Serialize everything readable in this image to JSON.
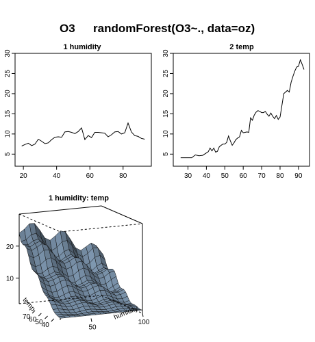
{
  "header": {
    "response": "O3",
    "formula": "randomForest(O3~., data=oz)"
  },
  "chart_data": [
    {
      "type": "line",
      "title": "1  humidity",
      "xlabel": "",
      "ylabel": "",
      "xlim": [
        15,
        97
      ],
      "ylim": [
        2,
        30
      ],
      "xticks": [
        "20",
        "40",
        "60",
        "80"
      ],
      "yticks": [
        "5",
        "10",
        "15",
        "20",
        "25",
        "30"
      ],
      "x": [
        19,
        21,
        23,
        25,
        27,
        29,
        31,
        33,
        35,
        37,
        39,
        41,
        43,
        45,
        47,
        49,
        51,
        53,
        55,
        57,
        59,
        61,
        63,
        65,
        67,
        69,
        71,
        73,
        75,
        77,
        79,
        81,
        83,
        85,
        87,
        89,
        91,
        93
      ],
      "y": [
        7.0,
        7.4,
        7.7,
        7.1,
        7.5,
        8.7,
        8.2,
        7.6,
        7.8,
        8.6,
        9.2,
        9.3,
        9.2,
        10.5,
        10.6,
        10.4,
        10.1,
        10.6,
        11.5,
        8.6,
        9.6,
        9.1,
        10.4,
        10.4,
        10.3,
        10.2,
        9.3,
        9.8,
        10.5,
        10.6,
        10.0,
        10.3,
        12.7,
        10.5,
        9.6,
        9.4,
        8.9,
        8.7
      ]
    },
    {
      "type": "line",
      "title": "2  temp",
      "xlabel": "",
      "ylabel": "",
      "xlim": [
        22,
        96
      ],
      "ylim": [
        2,
        30
      ],
      "xticks": [
        "30",
        "40",
        "50",
        "60",
        "70",
        "80",
        "90"
      ],
      "yticks": [
        "5",
        "10",
        "15",
        "20",
        "25",
        "30"
      ],
      "x": [
        26,
        28,
        30,
        32,
        34,
        36,
        38,
        40,
        41,
        42,
        43,
        44,
        45,
        46,
        47,
        48,
        49,
        50,
        51,
        52,
        53,
        54,
        55,
        56,
        57,
        58,
        59,
        60,
        61,
        62,
        63,
        64,
        65,
        66,
        67,
        68,
        69,
        70,
        71,
        72,
        73,
        74,
        75,
        76,
        77,
        78,
        79,
        80,
        82,
        84,
        85,
        86,
        87,
        88,
        89,
        90,
        91,
        92,
        93
      ],
      "y": [
        4.1,
        4.1,
        4.1,
        4.1,
        4.8,
        4.6,
        4.7,
        5.3,
        5.6,
        6.5,
        5.8,
        6.5,
        5.5,
        5.7,
        6.8,
        7.2,
        7.5,
        7.5,
        7.9,
        9.5,
        8.3,
        7.2,
        7.8,
        8.6,
        9.0,
        9.3,
        10.9,
        10.3,
        10.4,
        10.5,
        10.4,
        14.0,
        13.4,
        14.7,
        15.4,
        15.8,
        15.6,
        15.3,
        15.3,
        15.6,
        14.9,
        14.4,
        15.2,
        14.4,
        13.8,
        14.6,
        13.6,
        14.2,
        20.0,
        20.8,
        20.4,
        22.8,
        24.3,
        25.6,
        26.6,
        26.8,
        28.4,
        27.3,
        26.0
      ]
    },
    {
      "type": "surface",
      "title": "1 humidity: temp",
      "xlabel": "humidity",
      "ylabel": "temp",
      "zlabel": "",
      "xticks": [
        "50",
        "100"
      ],
      "yticks": [
        "40",
        "50",
        "60",
        "70"
      ],
      "zticks": [
        "10",
        "20"
      ],
      "xlim": [
        20,
        100
      ],
      "ylim": [
        30,
        95
      ],
      "zlim": [
        2,
        30
      ]
    }
  ]
}
